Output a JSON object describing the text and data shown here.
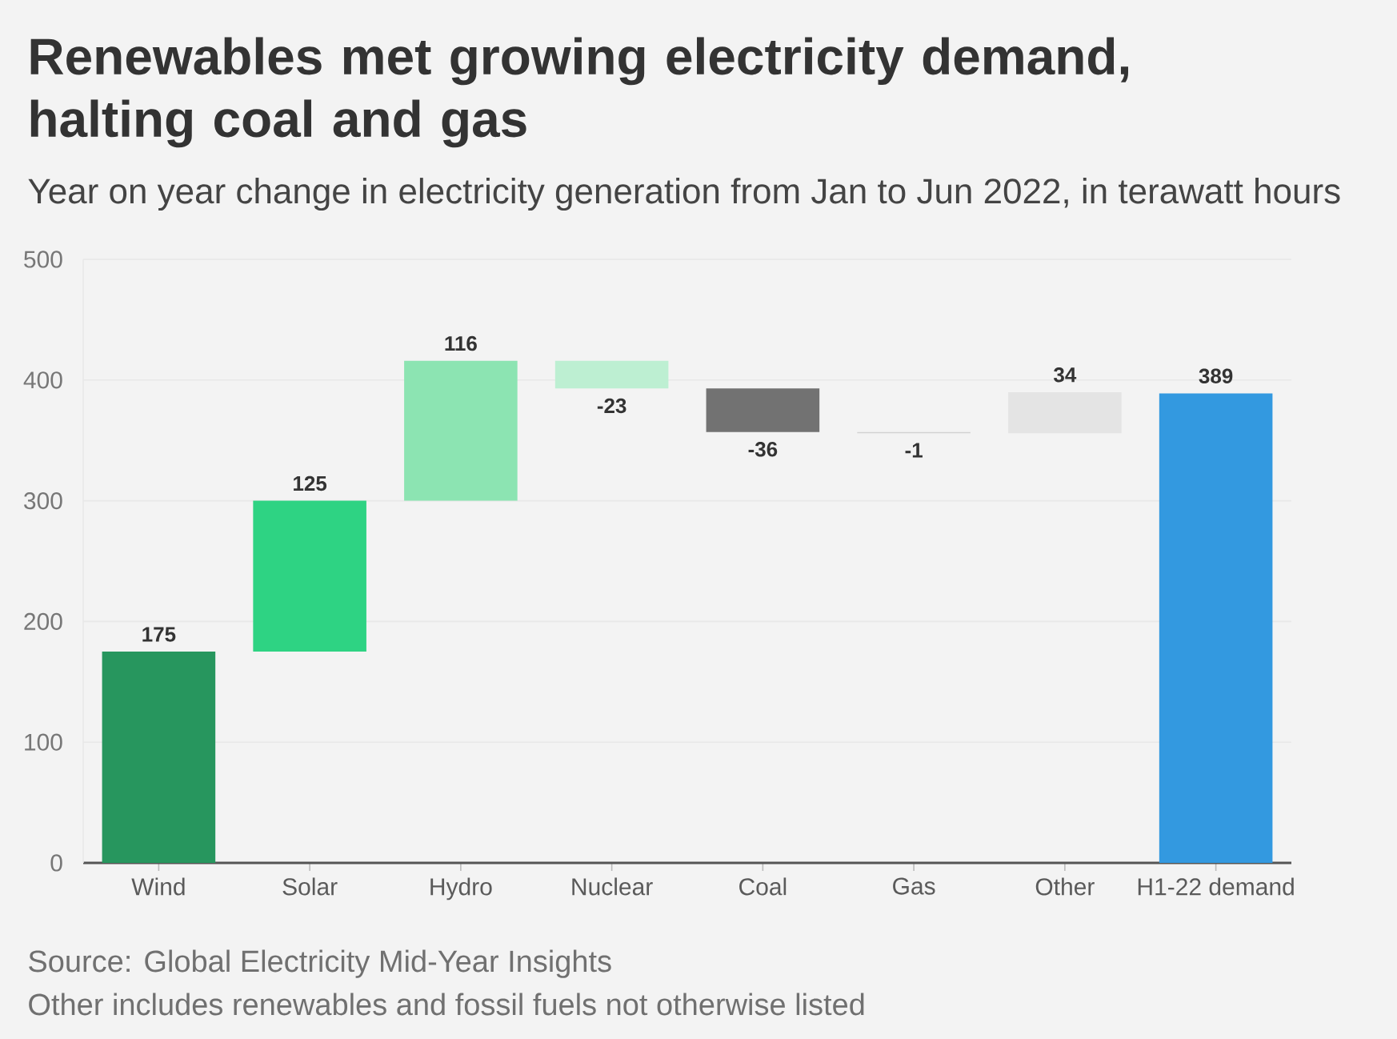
{
  "chart_data": {
    "type": "bar",
    "title": "Renewables met growing electricity demand, halting coal and gas",
    "subtitle": "Year on year change in electricity generation from Jan to Jun 2022, in terawatt hours",
    "categories": [
      "Wind",
      "Solar",
      "Hydro",
      "Nuclear",
      "Coal",
      "Gas",
      "Other",
      "H1-22 demand"
    ],
    "values": [
      175,
      125,
      116,
      -23,
      -36,
      -1,
      34,
      389
    ],
    "base": [
      0,
      175,
      300,
      416,
      393,
      357,
      356,
      0
    ],
    "colors": [
      "#27965e",
      "#2ed383",
      "#8ce4b2",
      "#bdefd2",
      "#727272",
      "#d2d2d2",
      "#e4e4e4",
      "#3399e0"
    ],
    "ylim": [
      0,
      500
    ],
    "yticks": [
      0,
      100,
      200,
      300,
      400,
      500
    ],
    "grid": "y",
    "data_labels": true,
    "annotations": [
      "Source: Global Electricity Mid-Year Insights",
      "Other includes renewables and fossil fuels not otherwise listed"
    ]
  }
}
